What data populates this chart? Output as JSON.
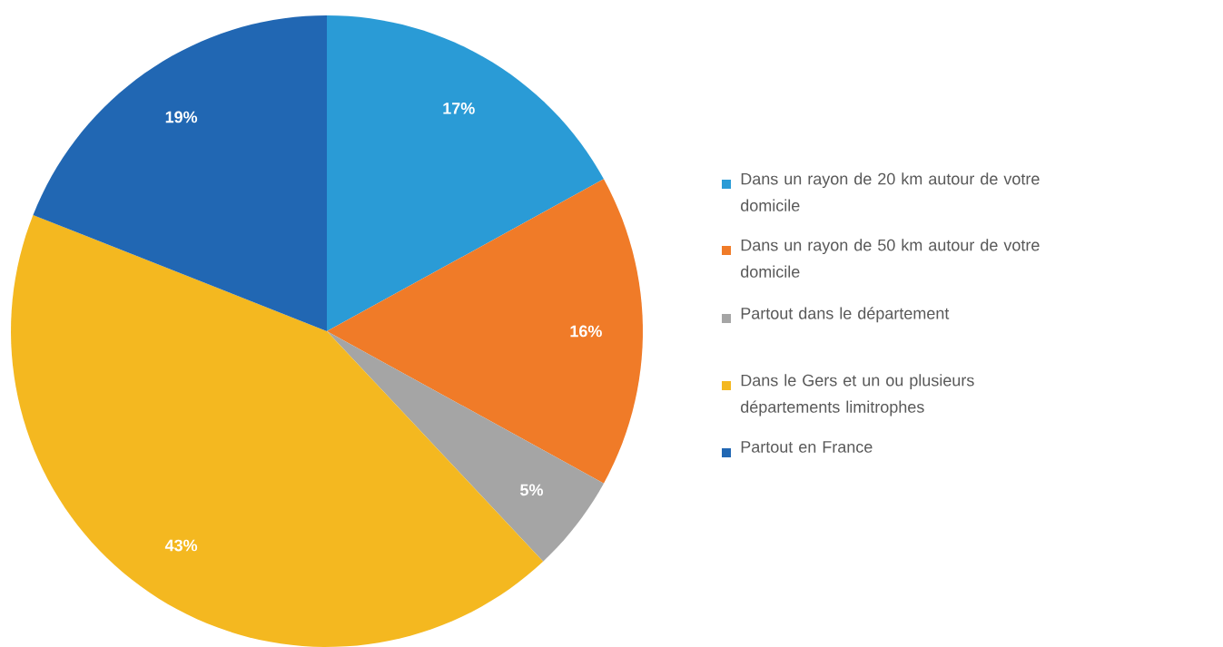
{
  "chart_data": {
    "type": "pie",
    "categories": [
      "Dans un rayon de 20 km autour de votre domicile",
      "Dans un rayon de 50 km autour de votre domicile",
      "Partout dans le département",
      "Dans le Gers et un ou plusieurs départements limitrophes",
      "Partout en France"
    ],
    "values": [
      17,
      16,
      5,
      43,
      19
    ],
    "value_labels": [
      "17%",
      "16%",
      "5%",
      "43%",
      "19%"
    ],
    "colors": [
      "#2a9bd6",
      "#f07b28",
      "#a5a5a5",
      "#f4b820",
      "#2167b3"
    ],
    "legend": "right"
  }
}
